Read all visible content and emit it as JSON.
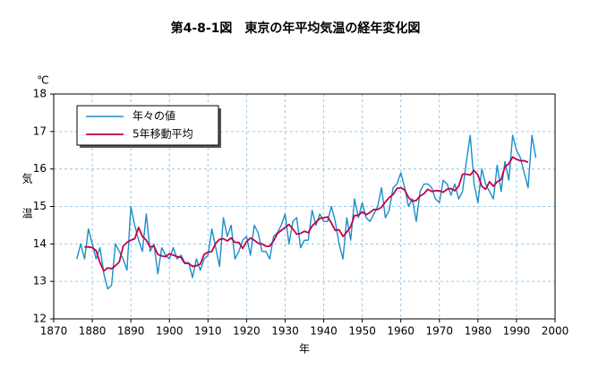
{
  "chart_data": {
    "type": "line",
    "title": "第4-8-1図　東京の年平均気温の経年変化図",
    "unit": "℃",
    "y_label": "気温",
    "x_label": "年",
    "legend": "upper left",
    "grid": true,
    "xlim": [
      1870,
      2000
    ],
    "xticks": [
      1870,
      1880,
      1890,
      1900,
      1910,
      1920,
      1930,
      1940,
      1950,
      1960,
      1970,
      1980,
      1990,
      2000
    ],
    "ylim": [
      12,
      18
    ],
    "yticks": [
      12,
      13,
      14,
      15,
      16,
      17,
      18
    ],
    "x": [
      1876,
      1877,
      1878,
      1879,
      1880,
      1881,
      1882,
      1883,
      1884,
      1885,
      1886,
      1887,
      1888,
      1889,
      1890,
      1891,
      1892,
      1893,
      1894,
      1895,
      1896,
      1897,
      1898,
      1899,
      1900,
      1901,
      1902,
      1903,
      1904,
      1905,
      1906,
      1907,
      1908,
      1909,
      1910,
      1911,
      1912,
      1913,
      1914,
      1915,
      1916,
      1917,
      1918,
      1919,
      1920,
      1921,
      1922,
      1923,
      1924,
      1925,
      1926,
      1927,
      1928,
      1929,
      1930,
      1931,
      1932,
      1933,
      1934,
      1935,
      1936,
      1937,
      1938,
      1939,
      1940,
      1941,
      1942,
      1943,
      1944,
      1945,
      1946,
      1947,
      1948,
      1949,
      1950,
      1951,
      1952,
      1953,
      1954,
      1955,
      1956,
      1957,
      1958,
      1959,
      1960,
      1961,
      1962,
      1963,
      1964,
      1965,
      1966,
      1967,
      1968,
      1969,
      1970,
      1971,
      1972,
      1973,
      1974,
      1975,
      1976,
      1977,
      1978,
      1979,
      1980,
      1981,
      1982,
      1983,
      1984,
      1985,
      1986,
      1987,
      1988,
      1989,
      1990,
      1991,
      1992,
      1993,
      1994,
      1995
    ],
    "series": [
      {
        "name": "年々の値",
        "color": "#1a8fc8",
        "width": 1.4,
        "values": [
          13.6,
          14.0,
          13.6,
          14.4,
          14.0,
          13.6,
          13.9,
          13.2,
          12.8,
          12.9,
          14.0,
          13.8,
          13.6,
          13.3,
          15.0,
          14.5,
          14.1,
          13.8,
          14.8,
          13.8,
          14.0,
          13.2,
          13.9,
          13.7,
          13.6,
          13.9,
          13.6,
          13.7,
          13.5,
          13.5,
          13.1,
          13.6,
          13.3,
          13.6,
          13.7,
          14.4,
          13.9,
          13.4,
          14.7,
          14.2,
          14.5,
          13.6,
          13.8,
          14.1,
          14.2,
          13.7,
          14.5,
          14.3,
          13.8,
          13.8,
          13.6,
          14.2,
          14.3,
          14.5,
          14.8,
          14.0,
          14.6,
          14.7,
          13.9,
          14.1,
          14.1,
          14.9,
          14.5,
          14.8,
          14.6,
          14.6,
          15.0,
          14.6,
          14.0,
          13.6,
          14.7,
          14.1,
          15.2,
          14.7,
          15.1,
          14.7,
          14.6,
          14.8,
          15.0,
          15.5,
          14.7,
          14.9,
          15.5,
          15.6,
          15.9,
          15.5,
          15.0,
          15.2,
          14.6,
          15.4,
          15.6,
          15.6,
          15.5,
          15.2,
          15.1,
          15.7,
          15.6,
          15.3,
          15.6,
          15.2,
          15.4,
          16.2,
          16.9,
          15.6,
          15.1,
          16.0,
          15.6,
          15.4,
          15.2,
          16.1,
          15.4,
          16.2,
          15.7,
          16.9,
          16.5,
          16.3,
          15.9,
          15.5,
          16.9,
          16.3
        ]
      },
      {
        "name": "5年移動平均",
        "color": "#c0004a",
        "width": 1.8,
        "values": [
          null,
          null,
          13.92,
          13.92,
          13.9,
          13.82,
          13.5,
          13.28,
          13.36,
          13.34,
          13.42,
          13.52,
          13.94,
          14.04,
          14.1,
          14.14,
          14.44,
          14.2,
          14.1,
          13.92,
          13.94,
          13.72,
          13.68,
          13.66,
          13.74,
          13.7,
          13.66,
          13.64,
          13.48,
          13.48,
          13.4,
          13.42,
          13.46,
          13.72,
          13.78,
          13.8,
          14.02,
          14.12,
          14.14,
          14.08,
          14.16,
          14.04,
          14.04,
          13.88,
          14.06,
          14.16,
          14.1,
          14.02,
          14.0,
          13.94,
          13.94,
          14.08,
          14.28,
          14.36,
          14.44,
          14.52,
          14.4,
          14.26,
          14.28,
          14.34,
          14.3,
          14.48,
          14.58,
          14.68,
          14.7,
          14.72,
          14.56,
          14.36,
          14.38,
          14.2,
          14.32,
          14.46,
          14.76,
          14.76,
          14.86,
          14.78,
          14.84,
          14.92,
          14.92,
          14.98,
          15.12,
          15.24,
          15.32,
          15.48,
          15.5,
          15.44,
          15.24,
          15.14,
          15.16,
          15.28,
          15.34,
          15.46,
          15.4,
          15.42,
          15.42,
          15.38,
          15.46,
          15.48,
          15.42,
          15.54,
          15.86,
          15.86,
          15.84,
          15.96,
          15.84,
          15.54,
          15.46,
          15.66,
          15.54,
          15.66,
          15.72,
          16.06,
          16.14,
          16.32,
          16.26,
          16.22,
          16.22,
          16.18,
          null,
          null
        ]
      }
    ]
  }
}
